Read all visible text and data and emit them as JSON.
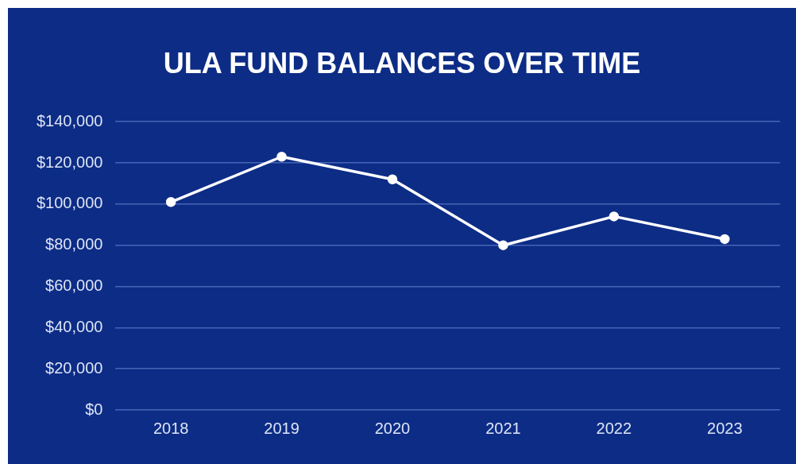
{
  "chart_data": {
    "type": "line",
    "title": "ULA FUND BALANCES OVER TIME",
    "categories": [
      "2018",
      "2019",
      "2020",
      "2021",
      "2022",
      "2023"
    ],
    "series": [
      {
        "color": "#ffffff",
        "values": [
          101000,
          123000,
          112000,
          80000,
          94000,
          83000
        ]
      }
    ],
    "ylim": [
      0,
      140000
    ],
    "yticks": [
      {
        "value": 0,
        "label": "$0"
      },
      {
        "value": 20000,
        "label": "$20,000"
      },
      {
        "value": 40000,
        "label": "$40,000"
      },
      {
        "value": 60000,
        "label": "$60,000"
      },
      {
        "value": 80000,
        "label": "$80,000"
      },
      {
        "value": 100000,
        "label": "$100,000"
      },
      {
        "value": 120000,
        "label": "$120,000"
      },
      {
        "value": 140000,
        "label": "$140,000"
      }
    ],
    "grid": "y",
    "legend": false,
    "marker": "circle",
    "line_style": "solid"
  }
}
